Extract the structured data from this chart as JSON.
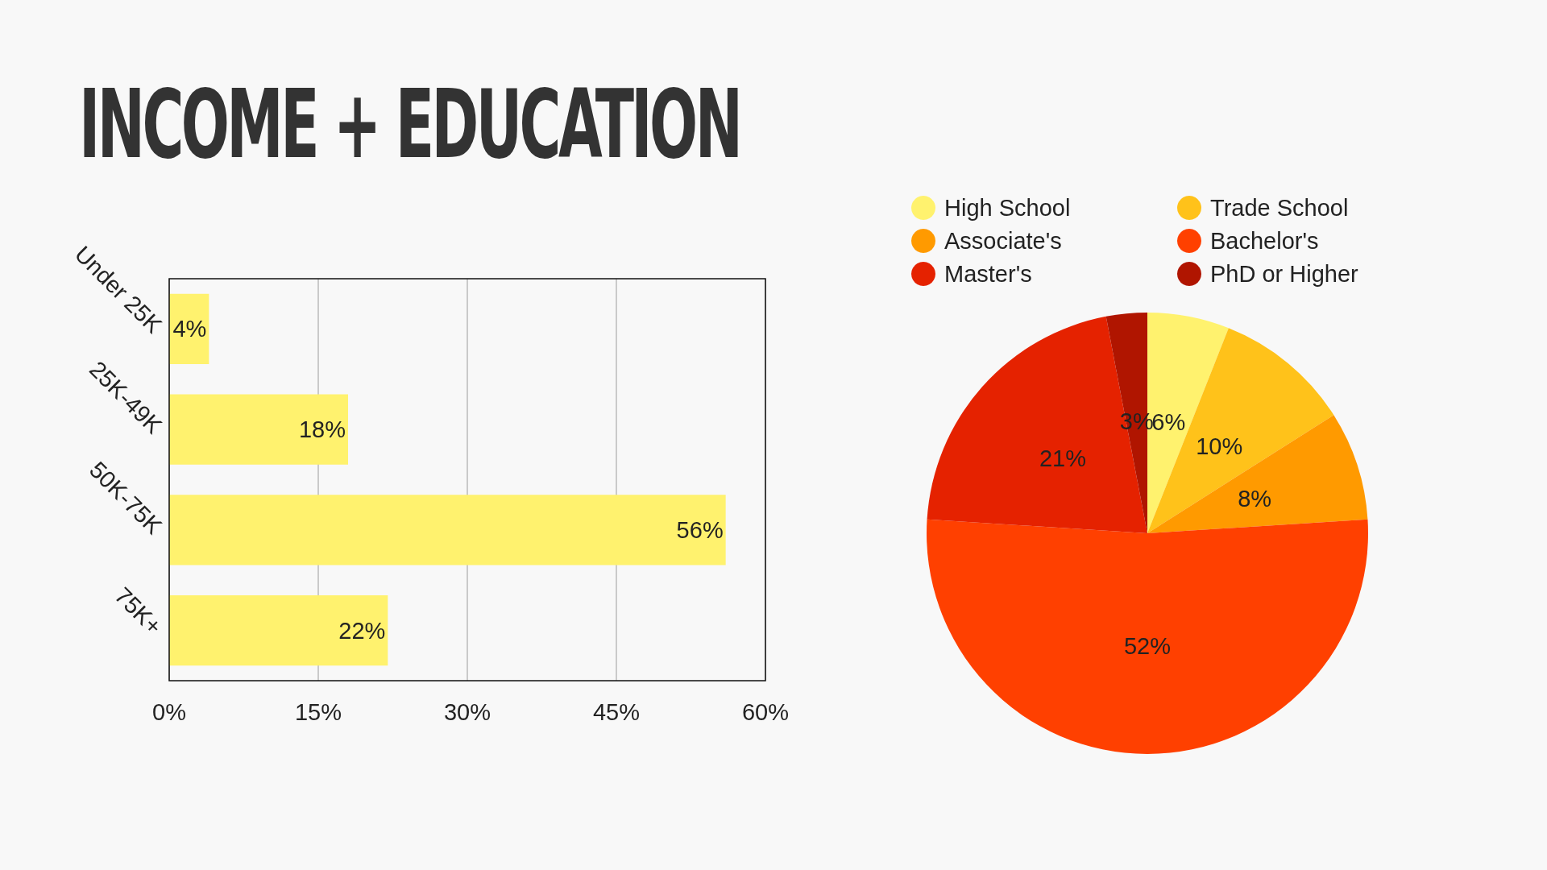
{
  "chart_data": [
    {
      "type": "bar",
      "title": "INCOME + EDUCATION",
      "orientation": "horizontal",
      "categories": [
        "Under 25K",
        "25K-49K",
        "50K-75K",
        "75K+"
      ],
      "values": [
        4,
        18,
        56,
        22
      ],
      "color": "#fff26e",
      "value_labels": [
        "4%",
        "18%",
        "56%",
        "22%"
      ],
      "xlim": [
        0,
        60
      ],
      "xticks": [
        {
          "value": 0,
          "label": "0%"
        },
        {
          "value": 15,
          "label": "15%"
        },
        {
          "value": 30,
          "label": "30%"
        },
        {
          "value": 45,
          "label": "45%"
        },
        {
          "value": 60,
          "label": "60%"
        }
      ],
      "grid": "x",
      "legend": false
    },
    {
      "type": "pie",
      "categories": [
        "High School",
        "Trade School",
        "Associate's",
        "Bachelor's",
        "Master's",
        "PhD or Higher"
      ],
      "values": [
        6,
        10,
        8,
        52,
        21,
        3
      ],
      "colors": [
        "#fff26e",
        "#ffc21a",
        "#ff9a00",
        "#ff4000",
        "#e52200",
        "#b01500"
      ],
      "value_labels": [
        "6%",
        "10%",
        "8%",
        "52%",
        "21%",
        "3%"
      ],
      "legend": "top"
    }
  ]
}
